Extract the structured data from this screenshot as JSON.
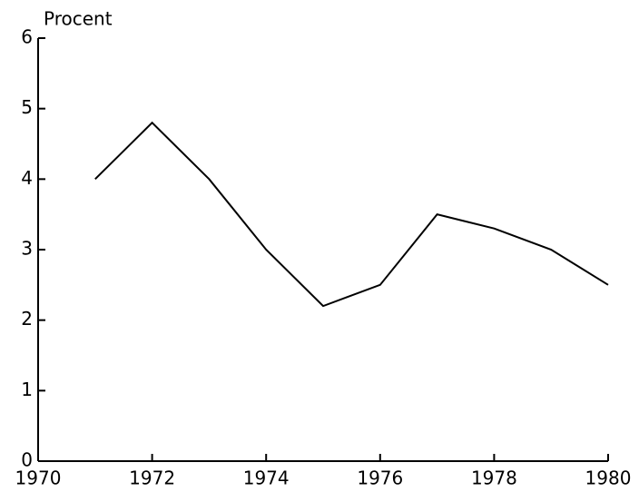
{
  "chart_data": {
    "type": "line",
    "y_label": "Procent",
    "x": [
      1971,
      1972,
      1973,
      1974,
      1975,
      1976,
      1977,
      1978,
      1979,
      1980
    ],
    "series": [
      {
        "name": null,
        "color": "#000000",
        "values": [
          4.0,
          4.8,
          4.0,
          3.0,
          2.2,
          2.5,
          3.5,
          3.3,
          3.0,
          2.5
        ]
      }
    ],
    "xlim": [
      1970,
      1980
    ],
    "xticks": [
      1970,
      1972,
      1974,
      1976,
      1978,
      1980
    ],
    "ylim": [
      0,
      6
    ],
    "yticks": [
      0,
      1,
      2,
      3,
      4,
      5,
      6
    ],
    "grid": false
  }
}
